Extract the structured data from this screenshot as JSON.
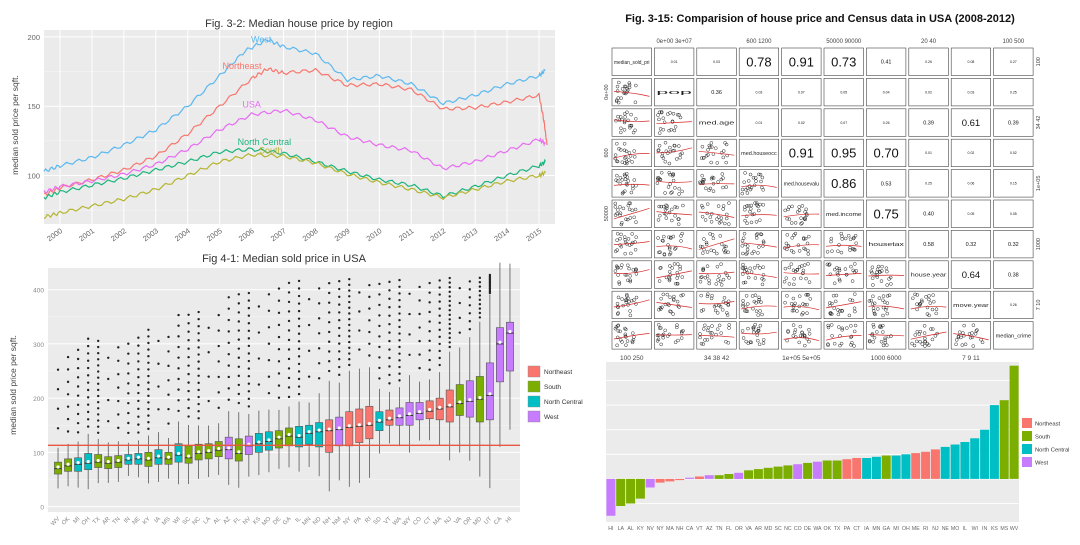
{
  "colors": {
    "northeast": "#f8766d",
    "south": "#7cae00",
    "north_central": "#00bfc4",
    "west": "#c77cff",
    "usa": "#e76bf3",
    "panel_bg": "#ebebeb",
    "grid": "#ffffff",
    "ref_line": "#e8573f",
    "south_line": "#b5b531",
    "north_central_line": "#1bb57c"
  },
  "chart_data": [
    {
      "id": "fig3_2",
      "type": "line",
      "title": "Fig. 3-2: Median house price by region",
      "xlabel": "",
      "ylabel": "median sold price per sqft.",
      "xlim": [
        1999.5,
        2015.5
      ],
      "ylim": [
        65,
        205
      ],
      "y_ticks": [
        100,
        150,
        200
      ],
      "x_tick_labels": [
        "2000",
        "2001",
        "2002",
        "2003",
        "2004",
        "2005",
        "2006",
        "2007",
        "2008",
        "2009",
        "2010",
        "2011",
        "2012",
        "2013",
        "2014",
        "2015"
      ],
      "series": [
        {
          "name": "West",
          "color": "#5bb8f0",
          "x": [
            1999.5,
            2000,
            2001,
            2002,
            2003,
            2004,
            2005,
            2005.8,
            2006.5,
            2007,
            2008,
            2009,
            2010,
            2011,
            2012,
            2013,
            2014,
            2015,
            2015.2
          ],
          "values": [
            103,
            107,
            113,
            122,
            133,
            150,
            172,
            190,
            198,
            193,
            188,
            169,
            172,
            166,
            152,
            158,
            166,
            172,
            176
          ]
        },
        {
          "name": "Northeast",
          "color": "#f8766d",
          "x": [
            1999.5,
            2000,
            2001,
            2002,
            2003,
            2004,
            2005,
            2006,
            2006.5,
            2007,
            2008,
            2009,
            2010,
            2011,
            2012,
            2013,
            2014,
            2015,
            2015.15,
            2015.25
          ],
          "values": [
            86,
            91,
            97,
            104,
            114,
            130,
            150,
            170,
            177,
            174,
            176,
            165,
            166,
            162,
            148,
            149,
            153,
            158,
            140,
            122
          ]
        },
        {
          "name": "USA",
          "color": "#e76bf3",
          "x": [
            1999.5,
            2000,
            2001,
            2002,
            2003,
            2004,
            2005,
            2006,
            2007,
            2008,
            2009,
            2010,
            2011,
            2012,
            2013,
            2014,
            2015,
            2015.2
          ],
          "values": [
            88,
            92,
            96,
            101,
            108,
            119,
            133,
            144,
            147,
            140,
            128,
            122,
            118,
            105,
            110,
            118,
            126,
            123
          ]
        },
        {
          "name": "North Central",
          "color": "#1bb57c",
          "x": [
            1999.5,
            2000,
            2001,
            2002,
            2003,
            2004,
            2005,
            2006,
            2007,
            2008,
            2009,
            2010,
            2011,
            2012,
            2013,
            2014,
            2015,
            2015.2
          ],
          "values": [
            84,
            88,
            93,
            98,
            104,
            110,
            117,
            119,
            116,
            110,
            103,
            97,
            93,
            85,
            92,
            100,
            107,
            110
          ]
        },
        {
          "name": "South",
          "color": "#b5b531",
          "x": [
            1999.5,
            2000,
            2001,
            2002,
            2003,
            2004,
            2005,
            2006,
            2007,
            2008,
            2009,
            2010,
            2011,
            2012,
            2013,
            2014,
            2015,
            2015.2
          ],
          "values": [
            70,
            73,
            78,
            83,
            90,
            100,
            110,
            115,
            114,
            109,
            101,
            95,
            90,
            84,
            90,
            96,
            100,
            102
          ]
        }
      ],
      "annotations": [
        "West",
        "Northeast",
        "USA",
        "North Central",
        "South"
      ]
    },
    {
      "id": "fig4_1",
      "type": "box",
      "title": "Fig 4-1: Median sold price in USA",
      "xlabel": "",
      "ylabel": "median sold price per sqft.",
      "ylim": [
        -10,
        440
      ],
      "y_ticks": [
        0,
        100,
        200,
        300,
        400
      ],
      "reference_line": 113,
      "categories": [
        "WV",
        "OK",
        "MI",
        "OH",
        "TX",
        "AR",
        "TN",
        "IN",
        "NE",
        "KY",
        "IA",
        "MS",
        "WI",
        "SC",
        "NC",
        "LA",
        "AL",
        "AZ",
        "FL",
        "NV",
        "KS",
        "MO",
        "DE",
        "GA",
        "IL",
        "MN",
        "ND",
        "NH",
        "NM",
        "NY",
        "PA",
        "RI",
        "SD",
        "VT",
        "WA",
        "WY",
        "CO",
        "CT",
        "MA",
        "NJ",
        "VA",
        "OR",
        "MD",
        "UT",
        "CA",
        "HI"
      ],
      "medians": [
        70,
        75,
        78,
        80,
        82,
        80,
        82,
        86,
        88,
        86,
        90,
        88,
        95,
        90,
        98,
        100,
        104,
        105,
        98,
        112,
        116,
        120,
        125,
        130,
        128,
        135,
        138,
        140,
        142,
        146,
        148,
        150,
        156,
        160,
        164,
        168,
        172,
        176,
        180,
        184,
        190,
        194,
        198,
        205,
        300,
        320
      ],
      "box_low": [
        60,
        65,
        65,
        68,
        72,
        70,
        72,
        78,
        78,
        74,
        78,
        78,
        82,
        80,
        86,
        88,
        92,
        88,
        84,
        96,
        100,
        104,
        108,
        112,
        110,
        115,
        110,
        100,
        112,
        112,
        118,
        125,
        140,
        150,
        150,
        150,
        160,
        162,
        160,
        156,
        168,
        165,
        156,
        160,
        230,
        250
      ],
      "box_high": [
        82,
        88,
        90,
        98,
        96,
        92,
        94,
        96,
        98,
        100,
        105,
        100,
        116,
        112,
        115,
        116,
        120,
        128,
        125,
        130,
        135,
        138,
        140,
        145,
        148,
        150,
        155,
        160,
        165,
        175,
        180,
        185,
        175,
        178,
        182,
        192,
        192,
        195,
        200,
        215,
        225,
        232,
        240,
        265,
        330,
        340
      ],
      "regions": [
        "South",
        "South",
        "North Central",
        "North Central",
        "South",
        "South",
        "South",
        "North Central",
        "North Central",
        "South",
        "North Central",
        "South",
        "North Central",
        "South",
        "South",
        "South",
        "South",
        "West",
        "South",
        "West",
        "North Central",
        "North Central",
        "South",
        "South",
        "North Central",
        "North Central",
        "North Central",
        "Northeast",
        "West",
        "Northeast",
        "Northeast",
        "Northeast",
        "North Central",
        "Northeast",
        "West",
        "West",
        "West",
        "Northeast",
        "Northeast",
        "Northeast",
        "South",
        "West",
        "South",
        "West",
        "West",
        "West"
      ],
      "legend": [
        "Northeast",
        "South",
        "North Central",
        "West"
      ],
      "legend_position": "right"
    },
    {
      "id": "fig3_15",
      "type": "scatter-matrix",
      "title": "Fig. 3-15: Comparision of house price and Census data in USA (2008-2012)",
      "variables": [
        "median_sold_pri",
        "pop",
        "med.age",
        "med.houseocc",
        "med.housevalu",
        "med.income",
        "housetax",
        "house.year",
        "move.year",
        "median_crime"
      ],
      "correlations": [
        {
          "row": 0,
          "col": 1,
          "text": "0.01"
        },
        {
          "row": 0,
          "col": 2,
          "text": "0.03"
        },
        {
          "row": 0,
          "col": 3,
          "text": "0.78"
        },
        {
          "row": 0,
          "col": 4,
          "text": "0.91"
        },
        {
          "row": 0,
          "col": 5,
          "text": "0.73"
        },
        {
          "row": 0,
          "col": 6,
          "text": "0.41"
        },
        {
          "row": 0,
          "col": 7,
          "text": "0.26"
        },
        {
          "row": 0,
          "col": 8,
          "text": "0.08"
        },
        {
          "row": 0,
          "col": 9,
          "text": "0.27"
        },
        {
          "row": 1,
          "col": 2,
          "text": "0.36"
        },
        {
          "row": 1,
          "col": 3,
          "text": "0.03"
        },
        {
          "row": 1,
          "col": 4,
          "text": "0.07"
        },
        {
          "row": 1,
          "col": 5,
          "text": "0.05"
        },
        {
          "row": 1,
          "col": 6,
          "text": "0.04"
        },
        {
          "row": 1,
          "col": 7,
          "text": "0.02"
        },
        {
          "row": 1,
          "col": 8,
          "text": "0.03"
        },
        {
          "row": 1,
          "col": 9,
          "text": "0.25"
        },
        {
          "row": 2,
          "col": 3,
          "text": "0.01"
        },
        {
          "row": 2,
          "col": 4,
          "text": "0.02"
        },
        {
          "row": 2,
          "col": 5,
          "text": "0.07"
        },
        {
          "row": 2,
          "col": 6,
          "text": "0.26"
        },
        {
          "row": 2,
          "col": 7,
          "text": "0.39"
        },
        {
          "row": 2,
          "col": 8,
          "text": "0.61"
        },
        {
          "row": 2,
          "col": 9,
          "text": "0.39"
        },
        {
          "row": 3,
          "col": 4,
          "text": "0.91"
        },
        {
          "row": 3,
          "col": 5,
          "text": "0.95"
        },
        {
          "row": 3,
          "col": 6,
          "text": "0.70"
        },
        {
          "row": 3,
          "col": 7,
          "text": "0.01"
        },
        {
          "row": 3,
          "col": 8,
          "text": "0.02"
        },
        {
          "row": 3,
          "col": 9,
          "text": "0.02"
        },
        {
          "row": 4,
          "col": 5,
          "text": "0.86"
        },
        {
          "row": 4,
          "col": 6,
          "text": "0.53"
        },
        {
          "row": 4,
          "col": 7,
          "text": "0.25"
        },
        {
          "row": 4,
          "col": 8,
          "text": "0.06"
        },
        {
          "row": 4,
          "col": 9,
          "text": "0.15"
        },
        {
          "row": 5,
          "col": 6,
          "text": "0.75"
        },
        {
          "row": 5,
          "col": 7,
          "text": "0.40"
        },
        {
          "row": 5,
          "col": 8,
          "text": "0.05"
        },
        {
          "row": 5,
          "col": 9,
          "text": "0.05"
        },
        {
          "row": 6,
          "col": 7,
          "text": "0.58"
        },
        {
          "row": 6,
          "col": 8,
          "text": "0.32"
        },
        {
          "row": 6,
          "col": 9,
          "text": "0.32"
        },
        {
          "row": 7,
          "col": 8,
          "text": "0.64"
        },
        {
          "row": 7,
          "col": 9,
          "text": "0.38"
        },
        {
          "row": 8,
          "col": 9,
          "text": "0.26"
        }
      ],
      "top_axis_labels": [
        {
          "col": 1,
          "text": "0e+00   3e+07"
        },
        {
          "col": 3,
          "text": "600  1200"
        },
        {
          "col": 5,
          "text": "50000   90000"
        },
        {
          "col": 7,
          "text": "20    40"
        },
        {
          "col": 9,
          "text": "100   500"
        }
      ],
      "bottom_axis_labels": [
        {
          "col": 0,
          "text": "100   250"
        },
        {
          "col": 2,
          "text": "34  38  42"
        },
        {
          "col": 4,
          "text": "1e+05     5e+05"
        },
        {
          "col": 6,
          "text": "1000   6000"
        },
        {
          "col": 8,
          "text": "7    9   11"
        }
      ],
      "left_axis_labels": [
        {
          "row": 1,
          "text": "0e+00"
        },
        {
          "row": 3,
          "text": "600"
        },
        {
          "row": 5,
          "text": "50000"
        }
      ],
      "right_axis_labels": [
        {
          "row": 0,
          "text": "100"
        },
        {
          "row": 2,
          "text": "34  42"
        },
        {
          "row": 4,
          "text": "1e+05"
        },
        {
          "row": 6,
          "text": "1000"
        },
        {
          "row": 8,
          "text": "7   10"
        }
      ]
    },
    {
      "id": "bar_diff",
      "type": "bar",
      "title": "",
      "ylim": [
        -35,
        95
      ],
      "categories": [
        "HI",
        "LA",
        "AL",
        "KY",
        "NV",
        "NY",
        "MA",
        "NH",
        "CA",
        "VT",
        "AZ",
        "TN",
        "FL",
        "OR",
        "VA",
        "AR",
        "MD",
        "SC",
        "NC",
        "CO",
        "DE",
        "WA",
        "OK",
        "TX",
        "PA",
        "CT",
        "IA",
        "MN",
        "GA",
        "MI",
        "OH",
        "ME",
        "RI",
        "NJ",
        "NE",
        "MO",
        "IL",
        "WI",
        "IN",
        "KS",
        "MS",
        "WV"
      ],
      "values": [
        -30,
        -22,
        -20,
        -16,
        -7,
        -3,
        -2,
        -1,
        1,
        2,
        3,
        3,
        4,
        5,
        7,
        8,
        9,
        10,
        11,
        12,
        13,
        14,
        15,
        15,
        16,
        17,
        17,
        18,
        19,
        19,
        20,
        21,
        22,
        24,
        26,
        28,
        30,
        33,
        40,
        60,
        64,
        92
      ],
      "regions": [
        "West",
        "South",
        "South",
        "South",
        "West",
        "Northeast",
        "Northeast",
        "Northeast",
        "West",
        "Northeast",
        "West",
        "South",
        "South",
        "West",
        "South",
        "South",
        "South",
        "South",
        "South",
        "West",
        "South",
        "West",
        "South",
        "South",
        "Northeast",
        "Northeast",
        "North Central",
        "North Central",
        "South",
        "North Central",
        "North Central",
        "Northeast",
        "Northeast",
        "Northeast",
        "North Central",
        "North Central",
        "North Central",
        "North Central",
        "North Central",
        "North Central",
        "South",
        "South"
      ],
      "legend": [
        "Northeast",
        "South",
        "North Central",
        "West"
      ],
      "legend_position": "right"
    }
  ]
}
